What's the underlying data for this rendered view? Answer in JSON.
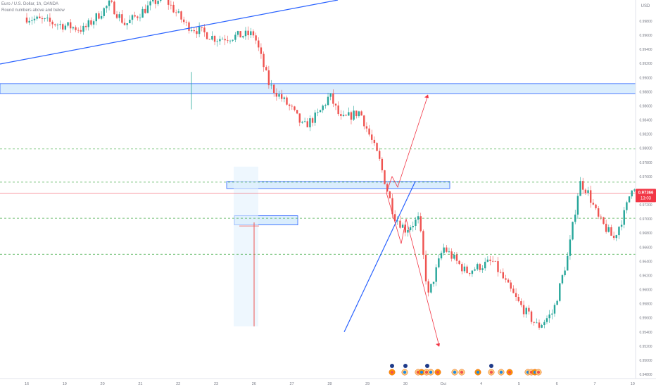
{
  "header": {
    "symbol_line": "Euro / U.S. Dollar, 1h, OANDA",
    "subtitle": "Round numbers above and below"
  },
  "price_axis": {
    "currency": "USD",
    "last_price_label": "0.97366",
    "countdown_label": "13:03"
  },
  "colors": {
    "candle_up": "#26a69a",
    "candle_down": "#ef5350",
    "trendline": "#2962ff",
    "zone_fill": "#bbdefb",
    "zone_border": "#2962ff",
    "level_line": "#4caf50",
    "projection": "#f23645",
    "last_price": "#f23645",
    "axis_text": "#787b86"
  },
  "chart_data": {
    "type": "candlestick",
    "instrument": "EURUSD",
    "timeframe": "1h",
    "x_tick_labels": [
      "16",
      "19",
      "20",
      "21",
      "22",
      "23",
      "26",
      "27",
      "28",
      "29",
      "30",
      "Oct",
      "4",
      "5",
      "6",
      "7",
      "10"
    ],
    "y_tick_labels": [
      "0.99800",
      "0.99600",
      "0.99400",
      "0.99200",
      "0.99000",
      "0.98800",
      "0.98600",
      "0.98400",
      "0.98200",
      "0.98000",
      "0.97800",
      "0.97600",
      "0.97400",
      "0.97200",
      "0.97000",
      "0.96800",
      "0.96600",
      "0.96400",
      "0.96200",
      "0.96000",
      "0.95800",
      "0.95600",
      "0.95400",
      "0.95200",
      "0.95000",
      "0.94800"
    ],
    "ylim": [
      0.9475,
      1.0035
    ],
    "close_path": [
      {
        "t": 0,
        "p": 0.9985
      },
      {
        "t": 1.5,
        "p": 0.9968
      },
      {
        "t": 2.2,
        "p": 1.0005
      },
      {
        "t": 2.6,
        "p": 0.9975
      },
      {
        "t": 3.3,
        "p": 1.0004
      },
      {
        "t": 3.6,
        "p": 1.0015
      },
      {
        "t": 4.2,
        "p": 0.9975
      },
      {
        "t": 5.0,
        "p": 0.9955
      },
      {
        "t": 6.0,
        "p": 0.9962
      },
      {
        "t": 6.4,
        "p": 0.989
      },
      {
        "t": 7.0,
        "p": 0.9855
      },
      {
        "t": 7.3,
        "p": 0.983
      },
      {
        "t": 7.7,
        "p": 0.9848
      },
      {
        "t": 8.0,
        "p": 0.9875
      },
      {
        "t": 8.3,
        "p": 0.984
      },
      {
        "t": 8.8,
        "p": 0.9852
      },
      {
        "t": 9.3,
        "p": 0.9785
      },
      {
        "t": 9.7,
        "p": 0.9705
      },
      {
        "t": 10.0,
        "p": 0.9685
      },
      {
        "t": 10.35,
        "p": 0.97
      },
      {
        "t": 10.6,
        "p": 0.959
      },
      {
        "t": 11.0,
        "p": 0.966
      },
      {
        "t": 11.6,
        "p": 0.9625
      },
      {
        "t": 12.3,
        "p": 0.964
      },
      {
        "t": 12.7,
        "p": 0.9605
      },
      {
        "t": 13.0,
        "p": 0.958
      },
      {
        "t": 13.5,
        "p": 0.9547
      },
      {
        "t": 13.9,
        "p": 0.9568
      },
      {
        "t": 14.3,
        "p": 0.965
      },
      {
        "t": 14.6,
        "p": 0.9752
      },
      {
        "t": 14.8,
        "p": 0.974
      },
      {
        "t": 15.1,
        "p": 0.97
      },
      {
        "t": 15.5,
        "p": 0.9672
      },
      {
        "t": 15.8,
        "p": 0.971
      },
      {
        "t": 16.0,
        "p": 0.975
      },
      {
        "t": 16.2,
        "p": 0.9737
      }
    ],
    "zones": [
      {
        "name": "upper-supply-zone",
        "top": 0.98915,
        "bottom": 0.98775
      },
      {
        "name": "resistance-zone",
        "top": 0.9753,
        "bottom": 0.9743
      },
      {
        "name": "lower-zone",
        "top": 0.97045,
        "bottom": 0.96915
      }
    ],
    "horizontal_levels": [
      0.9799,
      0.9752,
      0.9701,
      0.965
    ],
    "last_price": 0.97366,
    "scenario_up_target": 0.9875,
    "scenario_down_target": 0.952,
    "grid": false,
    "price_scale_side": "right"
  }
}
